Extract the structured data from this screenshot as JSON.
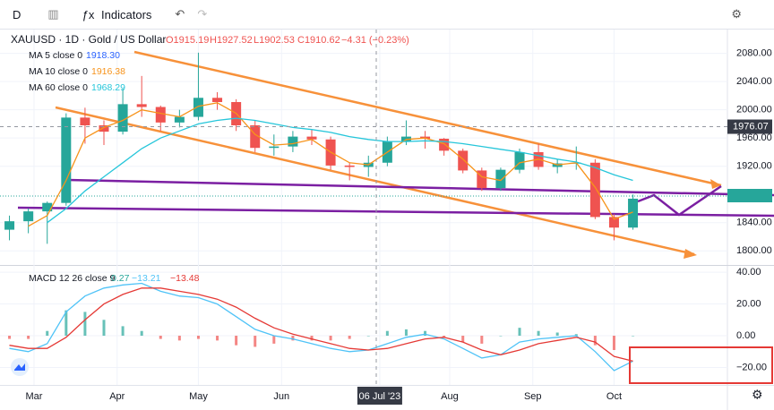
{
  "toolbar": {
    "interval": "D",
    "indicators": "Indicators"
  },
  "chart_data": {
    "type": "candlestick",
    "title": "XAUUSD · 1D · Gold / US Dollar",
    "ohlc_header": {
      "open": "O1915.19",
      "high": "H1927.52",
      "low": "L1902.53",
      "close": "C1910.62",
      "change": "−4.31 (−0.23%)"
    },
    "legend": [
      {
        "label": "MA 5 close 0",
        "value": "1918.30",
        "color": "#2962ff"
      },
      {
        "label": "MA 10 close 0",
        "value": "1916.38",
        "color": "#f7931a"
      },
      {
        "label": "MA 60 close 0",
        "value": "1968.29",
        "color": "#26c6da"
      }
    ],
    "open": [
      1830,
      1842,
      1856,
      1868,
      1989,
      1978,
      1969,
      2008,
      2004,
      1982,
      1990,
      2017,
      2011,
      1978,
      1946,
      1948,
      1962,
      1958,
      1921,
      1919,
      1925,
      1955,
      1962,
      1959,
      1942,
      1914,
      1889,
      1915,
      1940,
      1919,
      1924,
      1925,
      1848,
      1833
    ],
    "high": [
      1850,
      1860,
      1870,
      1995,
      2003,
      1985,
      2030,
      2048,
      2006,
      2000,
      2081,
      2025,
      2015,
      1985,
      1965,
      1970,
      1972,
      1962,
      1925,
      1935,
      1962,
      1985,
      1970,
      1960,
      1945,
      1918,
      1918,
      1945,
      1952,
      1930,
      1948,
      1930,
      1852,
      1880
    ],
    "low": [
      1815,
      1825,
      1810,
      1864,
      1952,
      1950,
      1965,
      1990,
      1970,
      1975,
      1985,
      2000,
      1970,
      1940,
      1935,
      1940,
      1950,
      1915,
      1900,
      1905,
      1920,
      1950,
      1945,
      1935,
      1910,
      1885,
      1885,
      1910,
      1915,
      1910,
      1915,
      1845,
      1815,
      1830
    ],
    "close": [
      1842,
      1856,
      1868,
      1989,
      1978,
      1969,
      2008,
      2004,
      1982,
      1990,
      2017,
      2011,
      1978,
      1946,
      1948,
      1962,
      1958,
      1921,
      1919,
      1925,
      1955,
      1962,
      1959,
      1942,
      1914,
      1889,
      1915,
      1940,
      1919,
      1924,
      1925,
      1848,
      1833,
      1874
    ],
    "series": [
      {
        "name": "MA 10",
        "color": "#f7931a",
        "values": [
          null,
          1835,
          1850,
          1900,
          1960,
          1975,
          1985,
          2000,
          1995,
          1990,
          2005,
          2010,
          1995,
          1965,
          1950,
          1952,
          1958,
          1940,
          1925,
          1922,
          1940,
          1958,
          1960,
          1952,
          1930,
          1905,
          1900,
          1925,
          1930,
          1922,
          1925,
          1890,
          1845,
          1855
        ]
      },
      {
        "name": "MA 60",
        "color": "#26c6da",
        "values": [
          null,
          null,
          1840,
          1860,
          1885,
          1905,
          1925,
          1945,
          1960,
          1970,
          1980,
          1985,
          1988,
          1985,
          1980,
          1975,
          1972,
          1968,
          1962,
          1958,
          1955,
          1955,
          1956,
          1955,
          1952,
          1948,
          1944,
          1940,
          1935,
          1930,
          1926,
          1918,
          1908,
          1900
        ]
      }
    ],
    "up_color": "#26a69a",
    "down_color": "#ef5350",
    "xlim": [
      -0.5,
      38
    ],
    "xticks": [
      {
        "value": 1.3,
        "label": "Mar"
      },
      {
        "value": 5.7,
        "label": "Apr"
      },
      {
        "value": 10.0,
        "label": "May"
      },
      {
        "value": 14.4,
        "label": "Jun"
      },
      {
        "value": 19.6,
        "label": "06 Jul '23"
      },
      {
        "value": 23.3,
        "label": "Aug"
      },
      {
        "value": 27.7,
        "label": "Sep"
      },
      {
        "value": 32.0,
        "label": "Oct"
      }
    ],
    "ylim": [
      1780,
      2110
    ],
    "yticks": [
      {
        "value": 2080,
        "label": "2080.00"
      },
      {
        "value": 2040,
        "label": "2040.00"
      },
      {
        "value": 2000,
        "label": "2000.00"
      },
      {
        "value": 1960,
        "label": "1960.00"
      },
      {
        "value": 1920,
        "label": "1920.00"
      },
      {
        "value": 1840,
        "label": "1840.00"
      },
      {
        "value": 1800,
        "label": "1800.00"
      }
    ],
    "crosshair_price": {
      "value": 1976.07,
      "label": "1976.07"
    },
    "macd": {
      "label": "MACD 12 26 close 9",
      "hist_value": "0.27",
      "macd_value": "−13.21",
      "signal_value": "−13.48",
      "macd": [
        -8,
        -10,
        -5,
        15,
        25,
        30,
        32,
        33,
        28,
        25,
        24,
        20,
        12,
        4,
        0,
        -2,
        -5,
        -8,
        -10,
        -9,
        -5,
        -1,
        1,
        -2,
        -8,
        -14,
        -12,
        -4,
        -2,
        -1,
        0,
        -10,
        -22,
        -16
      ],
      "signal": [
        -6,
        -8,
        -8,
        -1,
        10,
        20,
        26,
        30,
        30,
        28,
        26,
        23,
        18,
        11,
        5,
        1,
        -2,
        -5,
        -8,
        -9,
        -8,
        -5,
        -2,
        -1,
        -4,
        -9,
        -12,
        -9,
        -5,
        -3,
        -1,
        -4,
        -13,
        -16
      ],
      "hist": [
        -2,
        -2,
        3,
        16,
        15,
        10,
        6,
        3,
        -2,
        -3,
        -2,
        -3,
        -6,
        -7,
        -5,
        -3,
        -3,
        -3,
        -2,
        0,
        3,
        4,
        3,
        -1,
        -4,
        -5,
        0,
        5,
        3,
        2,
        1,
        -6,
        -9,
        0
      ],
      "ylim": [
        -31,
        44
      ],
      "yticks": [
        {
          "value": 40,
          "label": "40.00"
        },
        {
          "value": 20,
          "label": "20.00"
        },
        {
          "value": 0,
          "label": "0.00"
        },
        {
          "value": -20,
          "label": "−20.00"
        }
      ]
    }
  }
}
